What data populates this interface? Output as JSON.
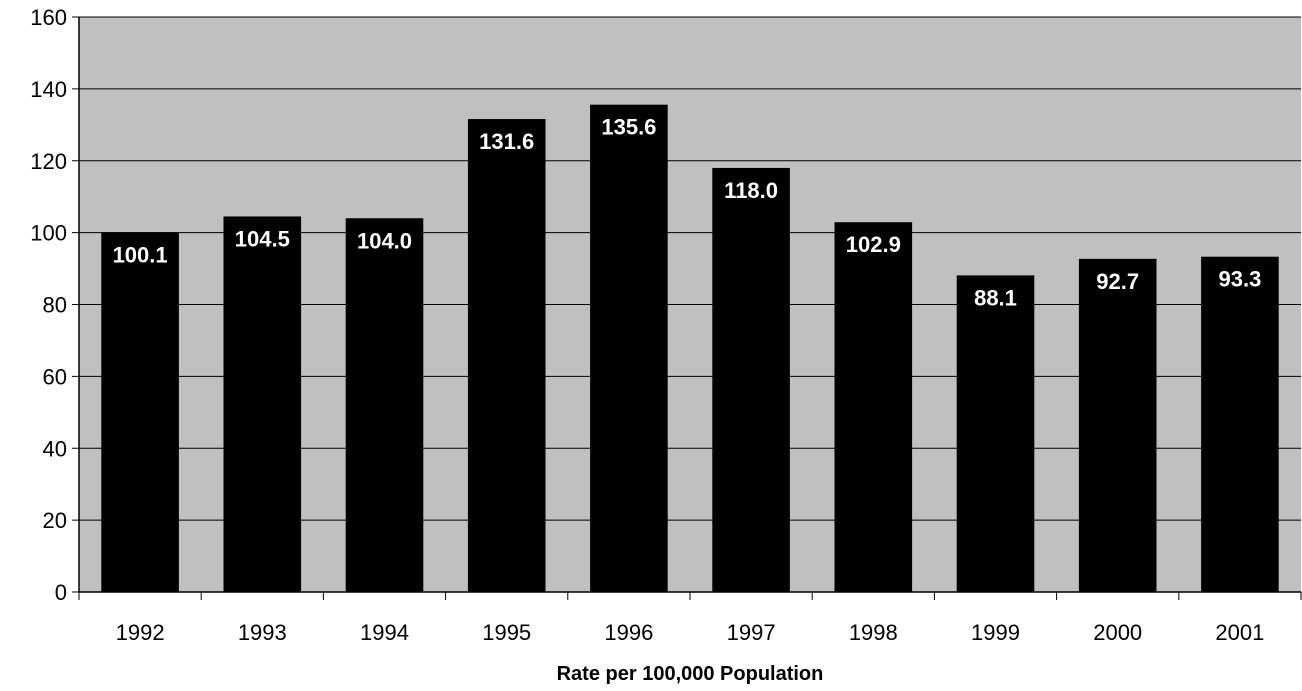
{
  "chart_data": {
    "type": "bar",
    "title": "",
    "xlabel": "Rate per 100,000 Population",
    "ylabel": "",
    "ylim": [
      0,
      160
    ],
    "yticks": [
      0,
      20,
      40,
      60,
      80,
      100,
      120,
      140,
      160
    ],
    "grid": true,
    "legend": "none",
    "categories": [
      "1992",
      "1993",
      "1994",
      "1995",
      "1996",
      "1997",
      "1998",
      "1999",
      "2000",
      "2001"
    ],
    "values": [
      100.1,
      104.5,
      104.0,
      131.6,
      135.6,
      118.0,
      102.9,
      88.1,
      92.7,
      93.3
    ],
    "data_labels": [
      "100.1",
      "104.5",
      "104.0",
      "131.6",
      "135.6",
      "118.0",
      "102.9",
      "88.1",
      "92.7",
      "93.3"
    ],
    "colors": {
      "plot_background": "#c0c0c0",
      "bar": "#000000",
      "grid": "#000000",
      "label": "#ffffff"
    }
  }
}
